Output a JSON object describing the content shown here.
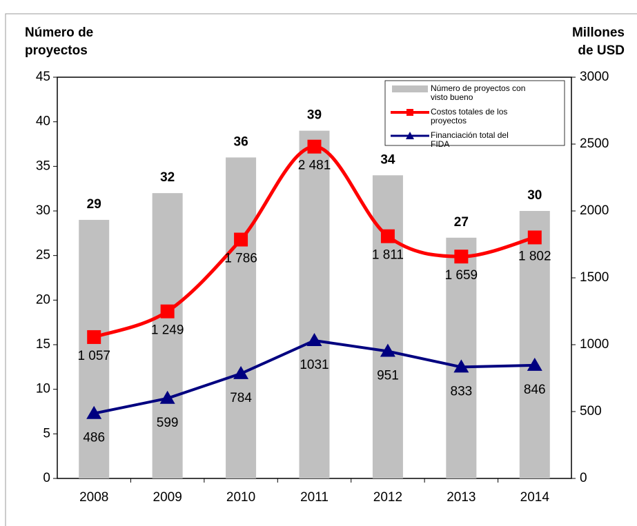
{
  "chart_data": {
    "type": "bar-line",
    "ylabel": [
      "Número de",
      "proyectos"
    ],
    "y2label": [
      "Millones",
      "de USD"
    ],
    "categories": [
      "2008",
      "2009",
      "2010",
      "2011",
      "2012",
      "2013",
      "2014"
    ],
    "ylim": [
      0,
      45
    ],
    "yticks": [
      0,
      5,
      10,
      15,
      20,
      25,
      30,
      35,
      40,
      45
    ],
    "y2lim": [
      0,
      3000
    ],
    "y2ticks": [
      0,
      500,
      1000,
      1500,
      2000,
      2500,
      3000
    ],
    "grid": false,
    "legend": "upper right",
    "series": [
      {
        "name": "Número de proyectos con visto bueno",
        "type": "bar",
        "color": "#c0c0c0",
        "values": [
          29,
          32,
          36,
          39,
          34,
          27,
          30
        ]
      },
      {
        "name": "Costos totales de los proyectos",
        "type": "line",
        "axis": "y2",
        "color": "#ff0000",
        "marker": "square",
        "smooth": true,
        "values": [
          1057,
          1249,
          1786,
          2481,
          1811,
          1659,
          1802
        ],
        "value_labels": [
          "1 057",
          "1 249",
          "1 786",
          "2 481",
          "1 811",
          "1 659",
          "1 802"
        ]
      },
      {
        "name": "Financiación total del FIDA",
        "type": "line",
        "axis": "y2",
        "color": "#000080",
        "marker": "triangle",
        "smooth": false,
        "values": [
          486,
          599,
          784,
          1031,
          951,
          833,
          846
        ]
      }
    ]
  }
}
